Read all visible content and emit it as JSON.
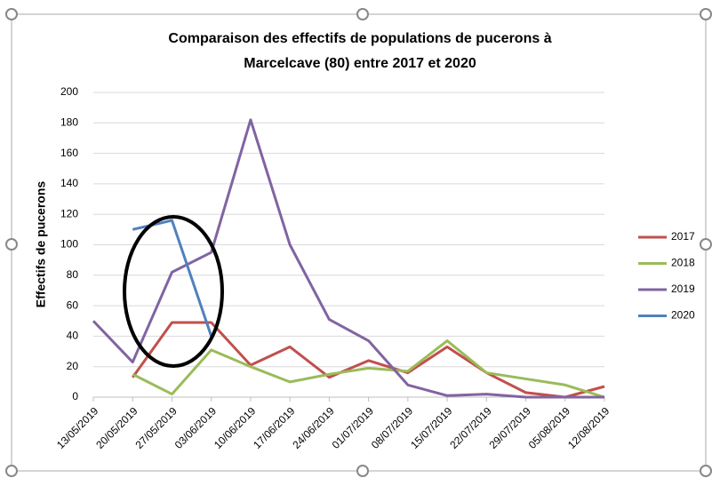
{
  "chart_data": {
    "type": "line",
    "title": [
      "Comparaison des effectifs de populations de pucerons à",
      "Marcelcave (80)  entre 2017 et 2020"
    ],
    "y_label": "Effectifs de pucerons",
    "categories": [
      "13/05/2019",
      "20/05/2019",
      "27/05/2019",
      "03/06/2019",
      "10/06/2019",
      "17/06/2019",
      "24/06/2019",
      "01/07/2019",
      "08/07/2019",
      "15/07/2019",
      "22/07/2019",
      "29/07/2019",
      "05/08/2019",
      "12/08/2019"
    ],
    "series": [
      {
        "name": "2017",
        "color": "#c0504d",
        "values": [
          null,
          13,
          49,
          49,
          21,
          33,
          13,
          24,
          16,
          33,
          16,
          3,
          0,
          7
        ]
      },
      {
        "name": "2018",
        "color": "#9bbb59",
        "values": [
          null,
          15,
          2,
          31,
          20,
          10,
          15,
          19,
          17,
          37,
          16,
          12,
          8,
          0
        ]
      },
      {
        "name": "2019",
        "color": "#8064a2",
        "values": [
          50,
          23,
          82,
          95,
          182,
          100,
          51,
          37,
          8,
          1,
          2,
          0,
          0,
          0
        ]
      },
      {
        "name": "2020",
        "color": "#4f81bd",
        "values": [
          null,
          110,
          116,
          40,
          null,
          null,
          null,
          null,
          null,
          null,
          null,
          null,
          null,
          null
        ]
      }
    ],
    "ylim": [
      0,
      200
    ],
    "yticks": [
      0,
      20,
      40,
      60,
      80,
      100,
      120,
      140,
      160,
      180,
      200
    ],
    "grid": true,
    "legend": "right"
  }
}
